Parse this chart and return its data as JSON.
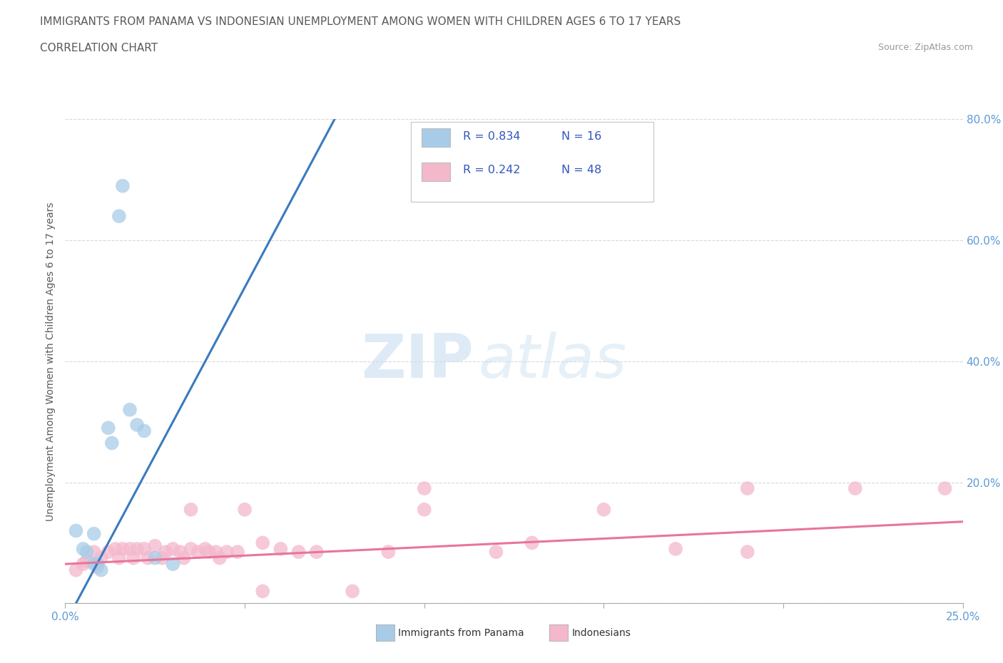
{
  "title": "IMMIGRANTS FROM PANAMA VS INDONESIAN UNEMPLOYMENT AMONG WOMEN WITH CHILDREN AGES 6 TO 17 YEARS",
  "subtitle": "CORRELATION CHART",
  "source": "Source: ZipAtlas.com",
  "ylabel": "Unemployment Among Women with Children Ages 6 to 17 years",
  "watermark_zip": "ZIP",
  "watermark_atlas": "atlas",
  "legend_items": [
    {
      "color": "#a8cce8",
      "r": "R = 0.834",
      "n": "N = 16"
    },
    {
      "color": "#f4b8cb",
      "r": "R = 0.242",
      "n": "N = 48"
    }
  ],
  "bottom_legend": [
    "Immigrants from Panama",
    "Indonesians"
  ],
  "blue_color": "#a8cce8",
  "pink_color": "#f4b8cb",
  "blue_line_color": "#3a7abf",
  "pink_line_color": "#e8759a",
  "text_color": "#5a5a5a",
  "tick_color": "#5b9bd5",
  "grid_color": "#d0d0d0",
  "xlim": [
    0.0,
    0.25
  ],
  "ylim": [
    0.0,
    0.8
  ],
  "blue_x": [
    0.003,
    0.005,
    0.006,
    0.008,
    0.008,
    0.009,
    0.01,
    0.012,
    0.013,
    0.015,
    0.016,
    0.018,
    0.02,
    0.022,
    0.025,
    0.03
  ],
  "blue_y": [
    0.12,
    0.09,
    0.085,
    0.115,
    0.065,
    0.065,
    0.055,
    0.29,
    0.265,
    0.64,
    0.69,
    0.32,
    0.295,
    0.285,
    0.075,
    0.065
  ],
  "pink_x": [
    0.003,
    0.005,
    0.006,
    0.008,
    0.009,
    0.01,
    0.012,
    0.014,
    0.015,
    0.016,
    0.018,
    0.019,
    0.02,
    0.022,
    0.023,
    0.025,
    0.027,
    0.028,
    0.03,
    0.032,
    0.033,
    0.035,
    0.037,
    0.039,
    0.04,
    0.042,
    0.043,
    0.045,
    0.048,
    0.05,
    0.055,
    0.06,
    0.065,
    0.07,
    0.09,
    0.1,
    0.12,
    0.13,
    0.15,
    0.17,
    0.19,
    0.22,
    0.245,
    0.035,
    0.08,
    0.055,
    0.1,
    0.19
  ],
  "pink_y": [
    0.055,
    0.065,
    0.07,
    0.085,
    0.06,
    0.075,
    0.085,
    0.09,
    0.075,
    0.09,
    0.09,
    0.075,
    0.09,
    0.09,
    0.075,
    0.095,
    0.075,
    0.085,
    0.09,
    0.085,
    0.075,
    0.09,
    0.085,
    0.09,
    0.085,
    0.085,
    0.075,
    0.085,
    0.085,
    0.155,
    0.1,
    0.09,
    0.085,
    0.085,
    0.085,
    0.155,
    0.085,
    0.1,
    0.155,
    0.09,
    0.085,
    0.19,
    0.19,
    0.155,
    0.02,
    0.02,
    0.19,
    0.19
  ],
  "blue_line_x0": 0.0,
  "blue_line_x1": 0.1,
  "pink_line_x0": 0.0,
  "pink_line_x1": 0.25
}
